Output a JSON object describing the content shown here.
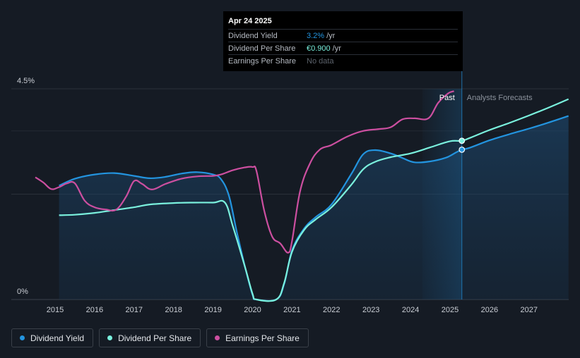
{
  "chart_data": {
    "type": "line",
    "x_range": [
      2014.4,
      2028.0
    ],
    "ylim": [
      0,
      4.5
    ],
    "y_ticks": [
      {
        "label": "4.5%",
        "value": 4.5
      },
      {
        "label": "0%",
        "value": 0
      }
    ],
    "x_ticks": [
      "2015",
      "2016",
      "2017",
      "2018",
      "2019",
      "2020",
      "2021",
      "2022",
      "2023",
      "2024",
      "2025",
      "2026",
      "2027"
    ],
    "past_label": "Past",
    "forecast_label": "Analysts Forecasts",
    "forecast_start": 2025.3,
    "past_band_start": 2024.3,
    "series": [
      {
        "name": "Dividend Yield",
        "color": "#2394df",
        "points": [
          [
            2015.1,
            2.43
          ],
          [
            2015.5,
            2.58
          ],
          [
            2016.0,
            2.67
          ],
          [
            2016.5,
            2.7
          ],
          [
            2017.0,
            2.64
          ],
          [
            2017.4,
            2.59
          ],
          [
            2017.8,
            2.62
          ],
          [
            2018.2,
            2.69
          ],
          [
            2018.6,
            2.72
          ],
          [
            2019.0,
            2.67
          ],
          [
            2019.2,
            2.57
          ],
          [
            2019.4,
            2.22
          ],
          [
            2019.6,
            1.45
          ],
          [
            2019.8,
            0.73
          ],
          [
            2020.0,
            0.1
          ],
          [
            2020.1,
            0
          ],
          [
            2020.6,
            0
          ],
          [
            2020.8,
            0.33
          ],
          [
            2021.0,
            1.05
          ],
          [
            2021.3,
            1.51
          ],
          [
            2021.6,
            1.76
          ],
          [
            2022.0,
            2.03
          ],
          [
            2022.5,
            2.68
          ],
          [
            2022.8,
            3.1
          ],
          [
            2023.1,
            3.19
          ],
          [
            2023.5,
            3.12
          ],
          [
            2023.8,
            3.02
          ],
          [
            2024.1,
            2.93
          ],
          [
            2024.5,
            2.95
          ],
          [
            2024.9,
            3.03
          ],
          [
            2025.15,
            3.14
          ],
          [
            2025.3,
            3.2
          ],
          [
            2025.5,
            3.24
          ],
          [
            2026.0,
            3.4
          ],
          [
            2026.5,
            3.53
          ],
          [
            2027.0,
            3.65
          ],
          [
            2027.5,
            3.78
          ],
          [
            2028.0,
            3.92
          ]
        ]
      },
      {
        "name": "Dividend Per Share",
        "color": "#7af0dd",
        "points": [
          [
            2015.1,
            1.8
          ],
          [
            2015.5,
            1.81
          ],
          [
            2016.0,
            1.85
          ],
          [
            2016.5,
            1.91
          ],
          [
            2017.0,
            1.97
          ],
          [
            2017.4,
            2.03
          ],
          [
            2018.0,
            2.06
          ],
          [
            2018.5,
            2.07
          ],
          [
            2019.0,
            2.07
          ],
          [
            2019.3,
            2.07
          ],
          [
            2019.5,
            1.57
          ],
          [
            2019.8,
            0.72
          ],
          [
            2020.0,
            0.12
          ],
          [
            2020.1,
            0
          ],
          [
            2020.6,
            0
          ],
          [
            2020.8,
            0.35
          ],
          [
            2021.0,
            1.02
          ],
          [
            2021.3,
            1.48
          ],
          [
            2021.6,
            1.71
          ],
          [
            2022.0,
            1.97
          ],
          [
            2022.5,
            2.45
          ],
          [
            2022.8,
            2.78
          ],
          [
            2023.1,
            2.94
          ],
          [
            2023.5,
            3.04
          ],
          [
            2024.0,
            3.12
          ],
          [
            2024.5,
            3.25
          ],
          [
            2025.0,
            3.38
          ],
          [
            2025.3,
            3.39
          ],
          [
            2025.5,
            3.45
          ],
          [
            2026.0,
            3.62
          ],
          [
            2026.5,
            3.77
          ],
          [
            2027.0,
            3.93
          ],
          [
            2027.5,
            4.1
          ],
          [
            2028.0,
            4.28
          ]
        ]
      },
      {
        "name": "Earnings Per Share",
        "color": "#cc4fa0",
        "points": [
          [
            2014.5,
            2.61
          ],
          [
            2014.7,
            2.5
          ],
          [
            2014.9,
            2.36
          ],
          [
            2015.1,
            2.4
          ],
          [
            2015.3,
            2.48
          ],
          [
            2015.5,
            2.48
          ],
          [
            2015.75,
            2.11
          ],
          [
            2016.0,
            1.97
          ],
          [
            2016.3,
            1.92
          ],
          [
            2016.55,
            1.92
          ],
          [
            2016.8,
            2.2
          ],
          [
            2017.0,
            2.53
          ],
          [
            2017.2,
            2.47
          ],
          [
            2017.45,
            2.35
          ],
          [
            2017.8,
            2.47
          ],
          [
            2018.2,
            2.58
          ],
          [
            2018.6,
            2.63
          ],
          [
            2019.0,
            2.64
          ],
          [
            2019.2,
            2.67
          ],
          [
            2019.5,
            2.76
          ],
          [
            2019.8,
            2.82
          ],
          [
            2020.0,
            2.83
          ],
          [
            2020.1,
            2.74
          ],
          [
            2020.3,
            1.88
          ],
          [
            2020.5,
            1.34
          ],
          [
            2020.7,
            1.2
          ],
          [
            2020.9,
            1.0
          ],
          [
            2021.0,
            1.25
          ],
          [
            2021.2,
            2.3
          ],
          [
            2021.45,
            2.9
          ],
          [
            2021.7,
            3.2
          ],
          [
            2022.0,
            3.3
          ],
          [
            2022.4,
            3.48
          ],
          [
            2022.8,
            3.6
          ],
          [
            2023.2,
            3.64
          ],
          [
            2023.5,
            3.68
          ],
          [
            2023.8,
            3.85
          ],
          [
            2024.1,
            3.87
          ],
          [
            2024.45,
            3.87
          ],
          [
            2024.7,
            4.2
          ],
          [
            2024.95,
            4.4
          ],
          [
            2025.1,
            4.45
          ]
        ]
      }
    ],
    "markers": [
      {
        "series": "Dividend Yield",
        "x": 2025.3,
        "y": 3.2
      },
      {
        "series": "Dividend Per Share",
        "x": 2025.3,
        "y": 3.39
      }
    ]
  },
  "tooltip": {
    "date": "Apr 24 2025",
    "rows": [
      {
        "label": "Dividend Yield",
        "value": "3.2%",
        "unit": "/yr"
      },
      {
        "label": "Dividend Per Share",
        "value": "€0.900",
        "unit": "/yr"
      },
      {
        "label": "Earnings Per Share",
        "value": "No data",
        "unit": ""
      }
    ]
  },
  "legend": [
    {
      "label": "Dividend Yield",
      "color": "#2394df"
    },
    {
      "label": "Dividend Per Share",
      "color": "#7af0dd"
    },
    {
      "label": "Earnings Per Share",
      "color": "#cc4fa0"
    }
  ]
}
